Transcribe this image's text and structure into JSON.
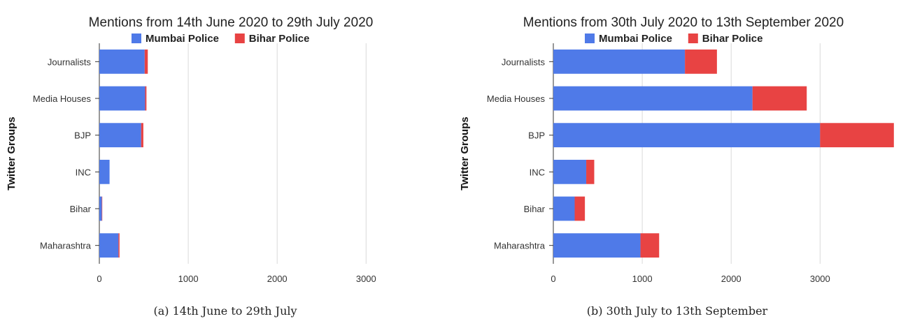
{
  "chart_data": [
    {
      "type": "bar",
      "orientation": "horizontal",
      "stacked": true,
      "title": "Mentions from  14th June 2020 to 29th July 2020",
      "ylabel": "Twitter Groups",
      "xlabel": "",
      "categories": [
        "Journalists",
        "Media Houses",
        "BJP",
        "INC",
        "Bihar",
        "Maharashtra"
      ],
      "series": [
        {
          "name": "Mumbai Police",
          "color": "#4f7ae8",
          "values": [
            510,
            515,
            470,
            115,
            28,
            215
          ]
        },
        {
          "name": "Bihar Police",
          "color": "#e84343",
          "values": [
            35,
            15,
            25,
            0,
            5,
            12
          ]
        }
      ],
      "xlim": [
        0,
        3800
      ],
      "xticks": [
        0,
        1000,
        2000,
        3000
      ],
      "xtick_labels": [
        "0",
        "1000",
        "2000",
        "3000"
      ],
      "grid": "vertical",
      "legend": "top-center",
      "caption": "(a) 14th June to 29th July"
    },
    {
      "type": "bar",
      "orientation": "horizontal",
      "stacked": true,
      "title": "Mentions from  30th July 2020 to 13th September 2020",
      "ylabel": "Twitter Groups",
      "xlabel": "",
      "categories": [
        "Journalists",
        "Media Houses",
        "BJP",
        "INC",
        "Bihar",
        "Maharashtra"
      ],
      "series": [
        {
          "name": "Mumbai Police",
          "color": "#4f7ae8",
          "values": [
            1480,
            2240,
            3000,
            370,
            240,
            980
          ]
        },
        {
          "name": "Bihar Police",
          "color": "#e84343",
          "values": [
            360,
            610,
            830,
            90,
            115,
            210
          ]
        }
      ],
      "xlim": [
        0,
        3800
      ],
      "xticks": [
        0,
        1000,
        2000,
        3000
      ],
      "xtick_labels": [
        "0",
        "1000",
        "2000",
        "3000"
      ],
      "grid": "vertical",
      "legend": "top-center",
      "caption": "(b) 30th July to 13th September"
    }
  ]
}
